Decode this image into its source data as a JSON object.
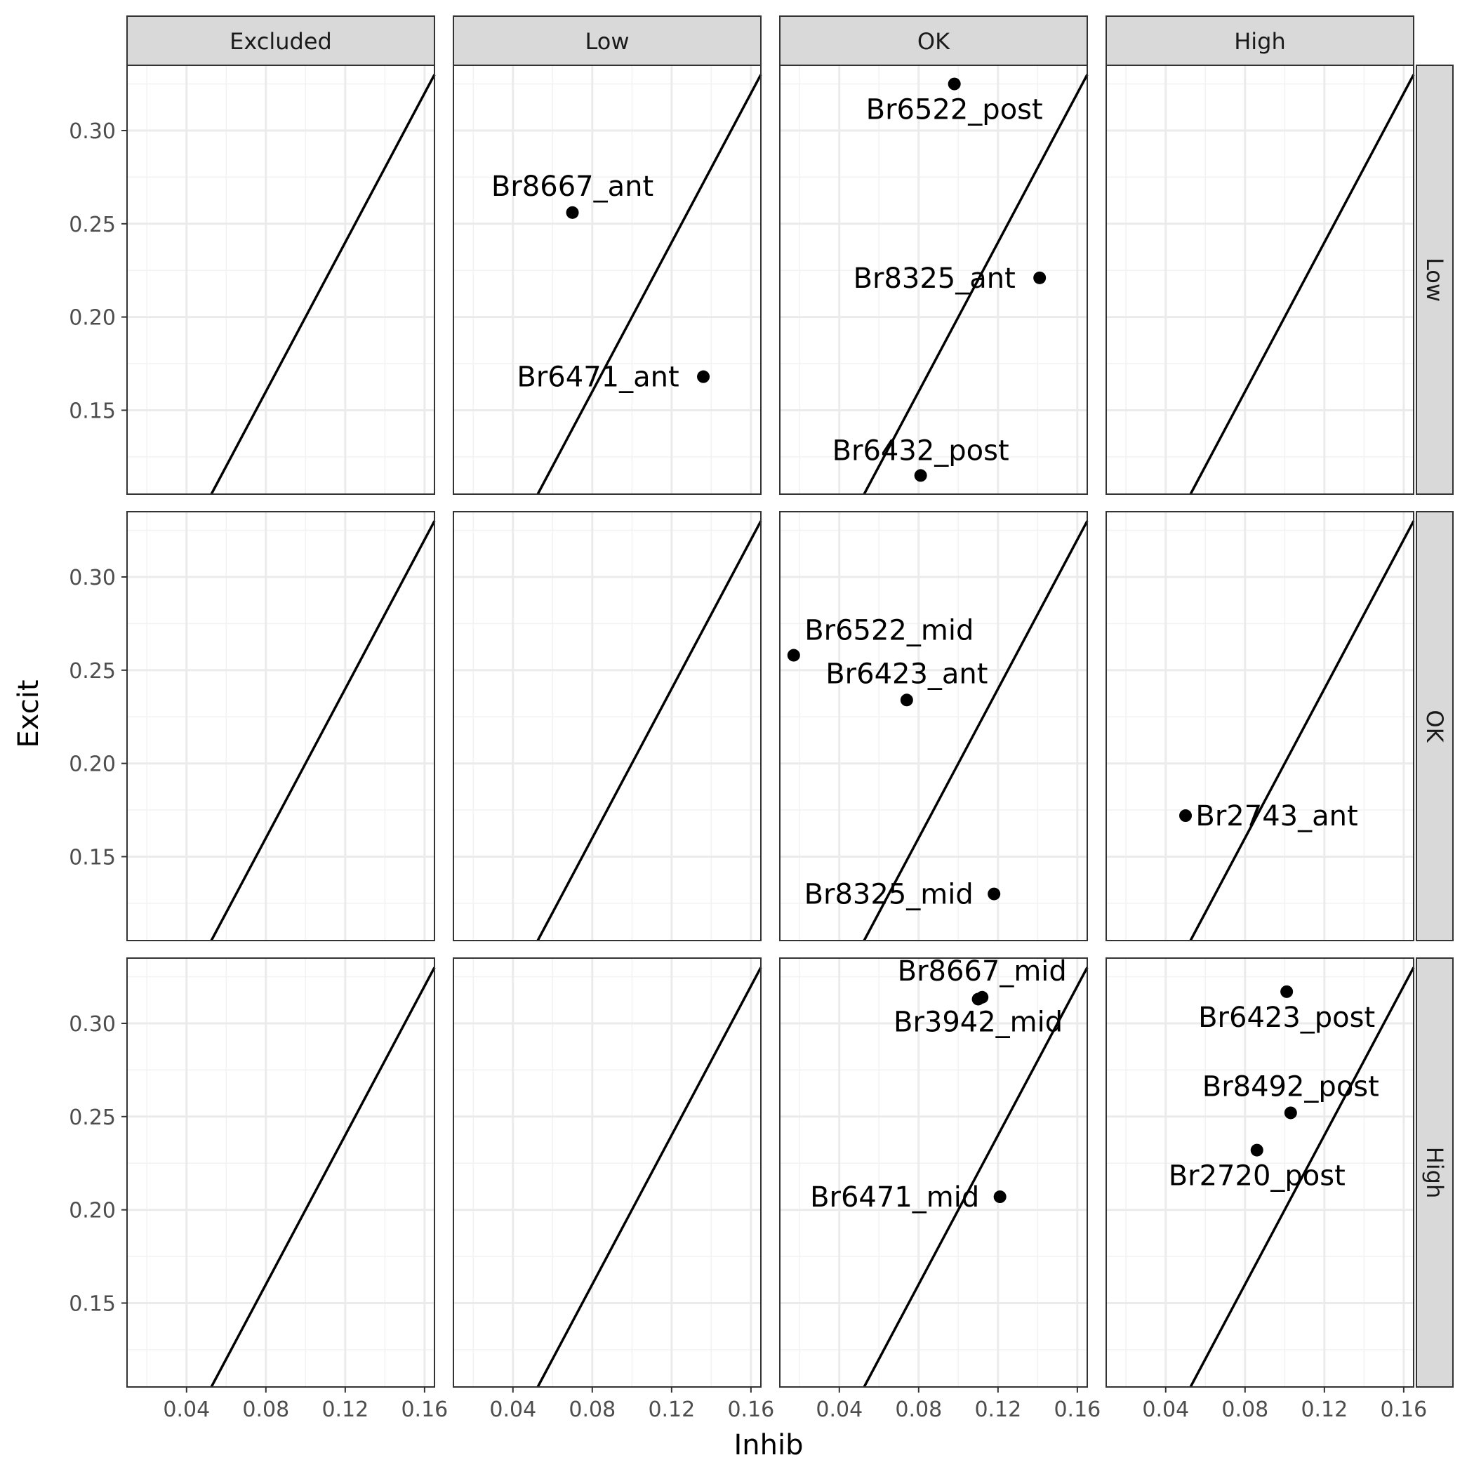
{
  "chart_data": {
    "type": "scatter",
    "facet_columns": [
      "Excluded",
      "Low",
      "OK",
      "High"
    ],
    "facet_rows": [
      "Low",
      "OK",
      "High"
    ],
    "xlabel": "Inhib",
    "ylabel": "Excit",
    "xlim": [
      0.01,
      0.165
    ],
    "ylim": [
      0.105,
      0.335
    ],
    "x_ticks": [
      "0.04",
      "0.08",
      "0.12",
      "0.16"
    ],
    "y_ticks": [
      "0.15",
      "0.20",
      "0.25",
      "0.30"
    ],
    "grid": true,
    "reference_line": {
      "slope": 2,
      "intercept": 0
    },
    "points": [
      {
        "label": "Br8667_ant",
        "col": "Low",
        "row": "Low",
        "x": 0.07,
        "y": 0.256
      },
      {
        "label": "Br6471_ant",
        "col": "Low",
        "row": "Low",
        "x": 0.136,
        "y": 0.168
      },
      {
        "label": "Br6522_post",
        "col": "OK",
        "row": "Low",
        "x": 0.098,
        "y": 0.325
      },
      {
        "label": "Br8325_ant",
        "col": "OK",
        "row": "Low",
        "x": 0.141,
        "y": 0.221
      },
      {
        "label": "Br6432_post",
        "col": "OK",
        "row": "Low",
        "x": 0.081,
        "y": 0.115
      },
      {
        "label": "Br6522_mid",
        "col": "OK",
        "row": "OK",
        "x": 0.017,
        "y": 0.258
      },
      {
        "label": "Br6423_ant",
        "col": "OK",
        "row": "OK",
        "x": 0.074,
        "y": 0.234
      },
      {
        "label": "Br8325_mid",
        "col": "OK",
        "row": "OK",
        "x": 0.118,
        "y": 0.13
      },
      {
        "label": "Br2743_ant",
        "col": "High",
        "row": "OK",
        "x": 0.05,
        "y": 0.172
      },
      {
        "label": "Br8667_mid",
        "col": "OK",
        "row": "High",
        "x": 0.112,
        "y": 0.314
      },
      {
        "label": "Br3942_mid",
        "col": "OK",
        "row": "High",
        "x": 0.11,
        "y": 0.313
      },
      {
        "label": "Br6471_mid",
        "col": "OK",
        "row": "High",
        "x": 0.121,
        "y": 0.207
      },
      {
        "label": "Br6423_post",
        "col": "High",
        "row": "High",
        "x": 0.101,
        "y": 0.317
      },
      {
        "label": "Br8492_post",
        "col": "High",
        "row": "High",
        "x": 0.103,
        "y": 0.252
      },
      {
        "label": "Br2720_post",
        "col": "High",
        "row": "High",
        "x": 0.086,
        "y": 0.232
      }
    ]
  }
}
